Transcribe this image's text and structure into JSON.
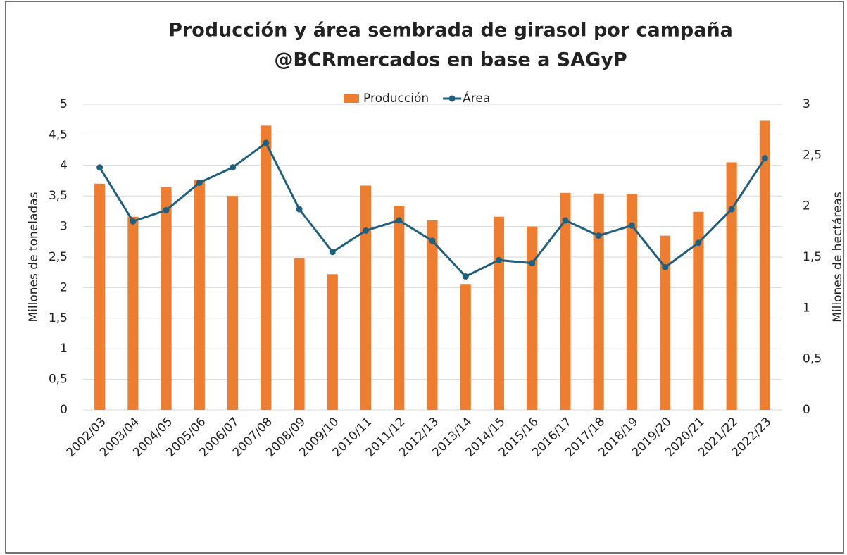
{
  "chart_data": {
    "type": "bar_line",
    "title": "Producción y área sembrada de girasol por campaña",
    "subtitle": "@BCRmercados en base a SAGyP",
    "y_label": "Millones de toneladas",
    "y2_label": "Millones de hectáreas",
    "categories": [
      "2002/03",
      "2003/04",
      "2004/05",
      "2005/06",
      "2006/07",
      "2007/08",
      "2008/09",
      "2009/10",
      "2010/11",
      "2011/12",
      "2012/13",
      "2013/14",
      "2014/15",
      "2015/16",
      "2016/17",
      "2017/18",
      "2018/19",
      "2019/20",
      "2020/21",
      "2021/22",
      "2022/23"
    ],
    "series": [
      {
        "name": "Producción",
        "color": "#ed7d31",
        "type": "bar",
        "values": [
          3.7,
          3.16,
          3.65,
          3.76,
          3.5,
          4.65,
          2.48,
          2.22,
          3.67,
          3.34,
          3.1,
          2.06,
          3.16,
          3.0,
          3.55,
          3.54,
          3.53,
          2.85,
          3.24,
          4.05,
          4.73
        ]
      },
      {
        "name": "Área",
        "color": "#1f5f7f",
        "type": "line",
        "axis": "y2",
        "values": [
          2.38,
          1.85,
          1.96,
          2.23,
          2.38,
          2.62,
          1.97,
          1.55,
          1.76,
          1.86,
          1.66,
          1.31,
          1.47,
          1.44,
          1.86,
          1.71,
          1.81,
          1.4,
          1.64,
          1.97,
          2.47
        ]
      }
    ],
    "ylim": [
      0,
      5
    ],
    "yticks": [
      0,
      {
        "value": 0.5,
        "label": "0,5"
      },
      1,
      {
        "value": 1.5,
        "label": "1,5"
      },
      2,
      {
        "value": 2.5,
        "label": "2,5"
      },
      3,
      {
        "value": 3.5,
        "label": "3,5"
      },
      4,
      {
        "value": 4.5,
        "label": "4,5"
      },
      5
    ],
    "y2lim": [
      0,
      3
    ],
    "y2ticks": [
      0,
      {
        "value": 0.5,
        "label": "0,5"
      },
      1,
      {
        "value": 1.5,
        "label": "1,5"
      },
      2,
      {
        "value": 2.5,
        "label": "2,5"
      },
      3
    ],
    "grid": true,
    "legend": "top"
  }
}
